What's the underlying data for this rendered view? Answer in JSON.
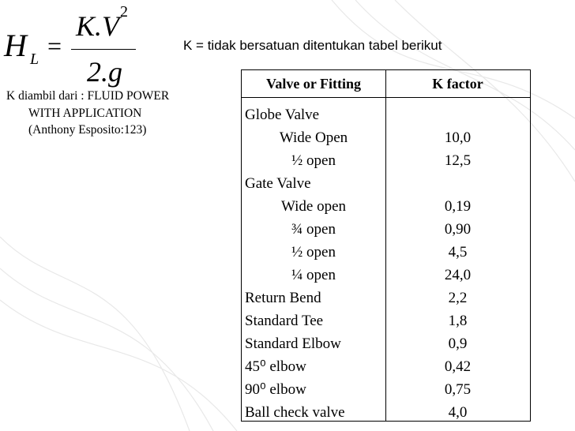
{
  "formula": {
    "lhs": "H",
    "lhs_sub": "L",
    "equals": "=",
    "numerator": "K.V",
    "numerator_sup": "2",
    "denominator": "2.g"
  },
  "note": "K = tidak bersatuan ditentukan tabel berikut",
  "source": [
    "K diambil dari : FLUID POWER",
    "WITH APPLICATION",
    "(Anthony Esposito:123)"
  ],
  "table": {
    "headers": [
      "Valve or Fitting",
      "K factor"
    ],
    "rows": [
      {
        "label": "Globe Valve",
        "rows": [
          [
            "Wide Open",
            "10,0"
          ],
          [
            "½ open",
            "12,5"
          ]
        ]
      },
      {
        "label": "Gate Valve",
        "rows": [
          [
            "Wide open",
            "0,19"
          ],
          [
            "¾ open",
            "0,90"
          ],
          [
            "½ open",
            "4,5"
          ],
          [
            "¼ open",
            "24,0"
          ]
        ]
      },
      [
        "Return Bend",
        "2,2"
      ],
      [
        "Standard Tee",
        "1,8"
      ],
      [
        "Standard Elbow",
        "0,9"
      ],
      [
        "45⁰ elbow",
        "0,42"
      ],
      [
        "90⁰ elbow",
        "0,75"
      ],
      [
        "Ball check valve",
        "4,0"
      ]
    ]
  }
}
